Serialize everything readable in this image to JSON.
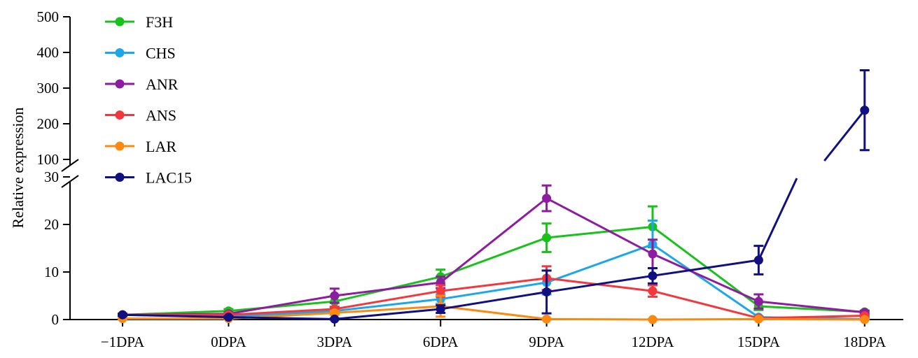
{
  "chart_data": {
    "type": "line",
    "ylabel": "Relative expression",
    "categories": [
      "−1DPA",
      "0DPA",
      "3DPA",
      "6DPA",
      "9DPA",
      "12DPA",
      "15DPA",
      "18DPA"
    ],
    "y_axis": {
      "broken": true,
      "lower_segment": {
        "range": [
          0,
          30
        ],
        "ticks": [
          "0",
          "10",
          "20",
          "30"
        ]
      },
      "upper_segment": {
        "range": [
          100,
          500
        ],
        "ticks": [
          "100",
          "200",
          "300",
          "400",
          "500"
        ]
      }
    },
    "legend_position": "top-left",
    "series": [
      {
        "name": "F3H",
        "color": "#18c21b",
        "values": [
          1.0,
          1.8,
          3.8,
          9.0,
          17.2,
          19.5,
          2.8,
          1.6
        ],
        "errors": [
          0.2,
          0.4,
          1.2,
          1.5,
          3.0,
          4.3,
          0.8,
          0.3
        ]
      },
      {
        "name": "CHS",
        "color": "#1ea7e8",
        "values": [
          1.0,
          0.6,
          1.8,
          4.3,
          7.8,
          15.8,
          0.5,
          0.1
        ],
        "errors": [
          0.2,
          0.2,
          0.5,
          1.0,
          2.5,
          5.0,
          0.2,
          0.1
        ]
      },
      {
        "name": "ANR",
        "color": "#8e1ca0",
        "values": [
          1.0,
          1.2,
          5.0,
          7.8,
          25.5,
          13.8,
          3.8,
          1.5
        ],
        "errors": [
          0.2,
          0.3,
          1.5,
          1.2,
          2.7,
          3.0,
          1.5,
          0.3
        ]
      },
      {
        "name": "ANS",
        "color": "#f2373d",
        "values": [
          1.0,
          1.0,
          2.2,
          6.0,
          8.7,
          6.0,
          0.3,
          0.8
        ],
        "errors": [
          0.2,
          0.3,
          0.5,
          1.2,
          2.5,
          1.2,
          0.2,
          0.2
        ]
      },
      {
        "name": "LAR",
        "color": "#fd8a10",
        "values": [
          0.2,
          0.2,
          1.4,
          2.8,
          0.1,
          0.0,
          0.1,
          0.0
        ],
        "errors": [
          0.1,
          0.1,
          0.4,
          2.2,
          0.1,
          0.1,
          0.1,
          0.1
        ]
      },
      {
        "name": "LAC15",
        "color": "#101080",
        "values": [
          1.0,
          0.5,
          0.1,
          2.2,
          5.8,
          9.2,
          12.5,
          238
        ],
        "errors": [
          0.2,
          0.2,
          0.1,
          0.8,
          4.5,
          1.6,
          3.0,
          112
        ]
      }
    ]
  }
}
